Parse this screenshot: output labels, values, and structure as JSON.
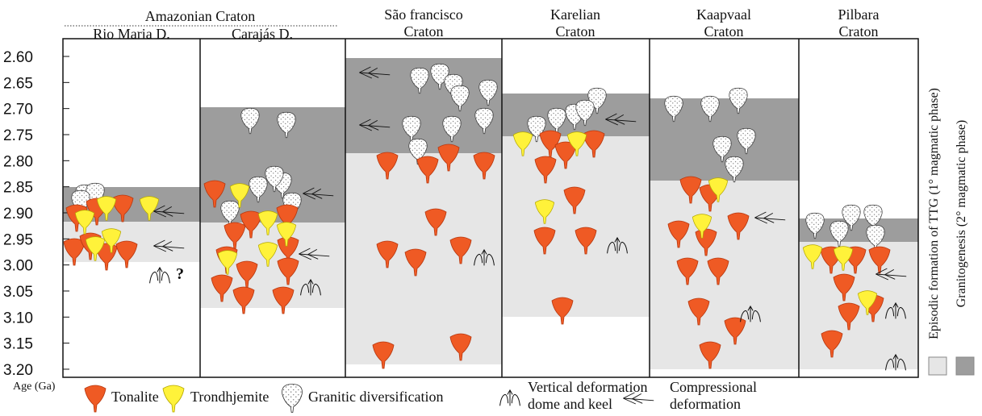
{
  "header": {
    "group": "Amazonian Craton",
    "columns": [
      [
        "Rio Maria D."
      ],
      [
        "Carajás D."
      ],
      [
        "São francisco",
        "Craton"
      ],
      [
        "Karelian",
        "Craton"
      ],
      [
        "Kaapvaal",
        "Craton"
      ],
      [
        "Pilbara",
        "Craton"
      ]
    ]
  },
  "axis": {
    "label": "Age (Ga)",
    "ticks": [
      "2.60",
      "2.65",
      "2.70",
      "2.75",
      "2.80",
      "2.85",
      "2.90",
      "2.95",
      "3.00",
      "3.05",
      "3.10",
      "3.15",
      "3.20"
    ]
  },
  "annotation": "?",
  "legend": {
    "items": [
      [
        "Tonalite"
      ],
      [
        "Trondhjemite"
      ],
      [
        "Granitic diversification"
      ],
      [
        "Vertical deformation",
        "dome and keel"
      ],
      [
        "Compressional",
        "deformation"
      ]
    ],
    "side": [
      "Episodic formation of TTG (1° magmatic phase)",
      "Granitogenesis (2° magmatic phase)"
    ]
  }
}
